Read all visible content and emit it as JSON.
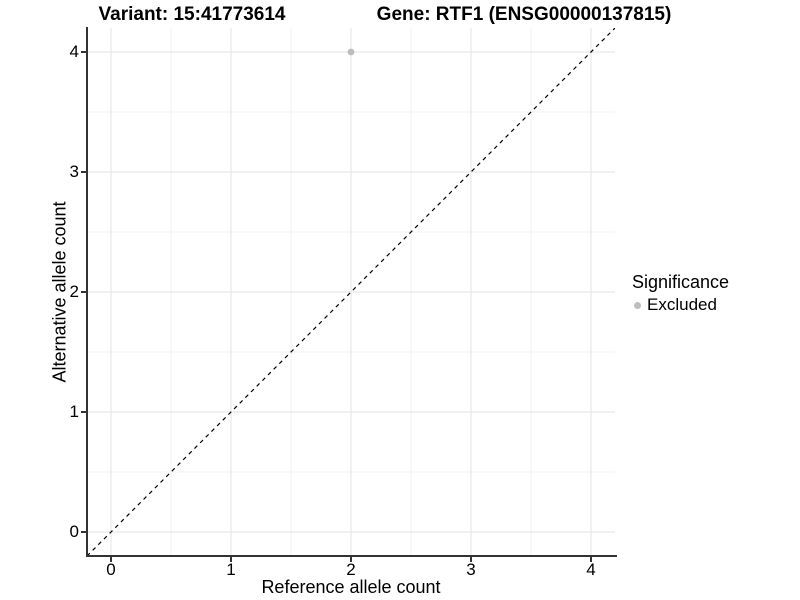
{
  "header": {
    "variant_title": "Variant: 15:41773614",
    "gene_title": "Gene: RTF1 (ENSG00000137815)"
  },
  "chart_data": {
    "type": "scatter",
    "xlabel": "Reference allele count",
    "ylabel": "Alternative allele count",
    "xlim": [
      -0.2,
      4.2
    ],
    "ylim": [
      -0.2,
      4.2
    ],
    "x_ticks": [
      0,
      1,
      2,
      3,
      4
    ],
    "y_ticks": [
      0,
      1,
      2,
      3,
      4
    ],
    "x_minor_ticks": [
      0.5,
      1.5,
      2.5,
      3.5
    ],
    "y_minor_ticks": [
      0.5,
      1.5,
      2.5,
      3.5
    ],
    "grid": true,
    "series": [
      {
        "name": "Excluded",
        "color": "#bdbdbd",
        "points": [
          {
            "x": 2,
            "y": 4
          }
        ]
      }
    ],
    "reference_line": {
      "type": "identity",
      "from": {
        "x": -0.2,
        "y": -0.2
      },
      "to": {
        "x": 4.2,
        "y": 4.2
      },
      "style": "dashed",
      "color": "#000000"
    },
    "legend": {
      "title": "Significance",
      "position": "right",
      "entries": [
        {
          "label": "Excluded",
          "color": "#bdbdbd"
        }
      ]
    }
  },
  "colors": {
    "background": "#ffffff",
    "grid_major": "#e3e3e3",
    "grid_minor": "#f1f1f1",
    "axis_line": "#333333",
    "tick_mark": "#333333",
    "text": "#000000",
    "point": "#bdbdbd"
  }
}
